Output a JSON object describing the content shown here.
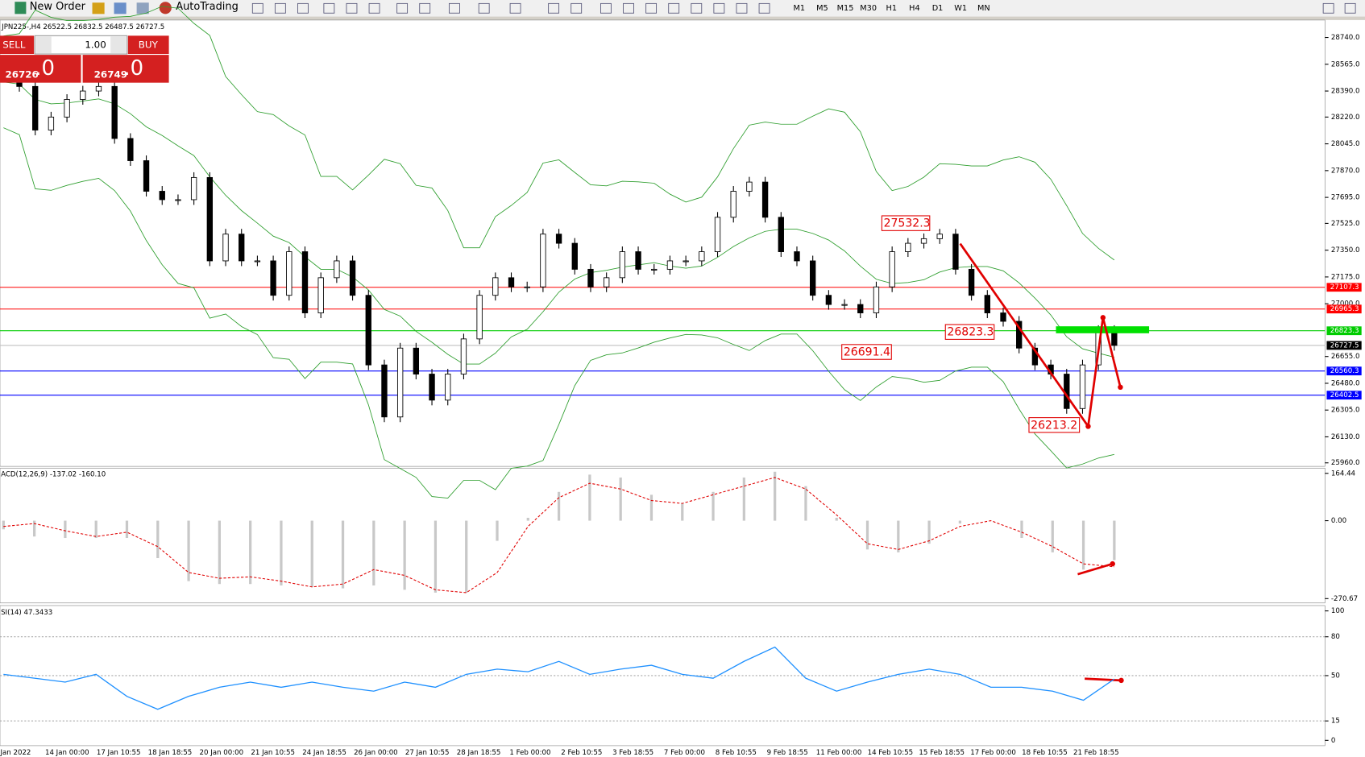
{
  "toolbar": {
    "new_order": "New Order",
    "auto_trading": "AutoTrading",
    "timeframes": [
      "M1",
      "M5",
      "M15",
      "M30",
      "H1",
      "H4",
      "D1",
      "W1",
      "MN"
    ]
  },
  "trade_panel": {
    "sell": "SELL",
    "buy": "BUY",
    "lot": "1.00",
    "bid": "26726",
    "bid_big": ".0",
    "ask": "26749",
    "ask_big": ".0"
  },
  "main": {
    "symbol": "JPN225-,H4  26522.5 26832.5 26487.5 26727.5",
    "ylim": [
      25937,
      28854
    ],
    "yticks": [
      {
        "value": 28740,
        "label": "28740.0"
      },
      {
        "value": 28565,
        "label": "28565.0"
      },
      {
        "value": 28390,
        "label": "28390.0"
      },
      {
        "value": 28220,
        "label": "28220.0"
      },
      {
        "value": 28045,
        "label": "28045.0"
      },
      {
        "value": 27870,
        "label": "27870.0"
      },
      {
        "value": 27695,
        "label": "27695.0"
      },
      {
        "value": 27525,
        "label": "27525.0"
      },
      {
        "value": 27350,
        "label": "27350.0"
      },
      {
        "value": 27175,
        "label": "27175.0"
      },
      {
        "value": 27000,
        "label": "27000.0"
      },
      {
        "value": 26655,
        "label": "26655.0"
      },
      {
        "value": 26480,
        "label": "26480.0"
      },
      {
        "value": 26305,
        "label": "26305.0"
      },
      {
        "value": 26130,
        "label": "26130.0"
      },
      {
        "value": 25960,
        "label": "25960.0"
      }
    ],
    "levels": [
      {
        "value": 27107.3,
        "color": "#ff0000"
      },
      {
        "value": 26965.3,
        "color": "#ff0000"
      },
      {
        "value": 26823.3,
        "color": "#00cc00"
      },
      {
        "value": 26727.5,
        "color": "#c0c0c0"
      },
      {
        "value": 26560.3,
        "color": "#0000ff"
      },
      {
        "value": 26402.5,
        "color": "#0000ff"
      }
    ],
    "annotations": [
      27532.3,
      26691.4,
      26823.3,
      26213.2
    ],
    "closes": [
      28450,
      28420,
      28135,
      28220,
      28335,
      28390,
      28420,
      28080,
      27935,
      27735,
      27680,
      27680,
      27825,
      27280,
      27455,
      27280,
      27280,
      27055,
      27340,
      26940,
      27170,
      27280,
      27055,
      26600,
      26260,
      26710,
      26540,
      26370,
      26540,
      26770,
      27055,
      27170,
      27110,
      27110,
      27455,
      27395,
      27225,
      27110,
      27170,
      27340,
      27225,
      27225,
      27280,
      27280,
      27340,
      27565,
      27735,
      27795,
      27565,
      27340,
      27280,
      27055,
      26995,
      26995,
      26940,
      27110,
      27340,
      27395,
      27425,
      27455,
      27225,
      27055,
      26940,
      26885,
      26710,
      26600,
      26540,
      26315,
      26600,
      26825,
      26727.5
    ]
  },
  "macd": {
    "label": "ACD(12,26,9) -137.02 -160.10",
    "ylim": [
      -285.8,
      182.6
    ],
    "yticks": [
      164.44,
      {
        "value": 0,
        "label": "0.00"
      },
      -270.67
    ],
    "histogram": [
      -30,
      -55,
      -60,
      -60,
      -60,
      -130,
      -210,
      -220,
      -220,
      -225,
      -230,
      -235,
      -225,
      -240,
      -250,
      -250,
      -70,
      10,
      100,
      160,
      150,
      90,
      60,
      100,
      150,
      170,
      120,
      10,
      -100,
      -110,
      -80,
      -10,
      0,
      -60,
      -110,
      -170,
      -137.02
    ],
    "signal": [
      -20,
      -10,
      -35,
      -55,
      -40,
      -90,
      -180,
      -200,
      -195,
      -210,
      -230,
      -220,
      -170,
      -190,
      -240,
      -250,
      -180,
      -20,
      80,
      130,
      110,
      70,
      60,
      90,
      120,
      150,
      110,
      20,
      -80,
      -100,
      -70,
      -20,
      0,
      -40,
      -90,
      -150,
      -160.1
    ]
  },
  "rsi": {
    "label": "SI(14) 47.3433",
    "ylim": [
      -4.1,
      104.1
    ],
    "yticks": [
      100,
      80,
      50,
      15,
      0
    ],
    "levels": [
      80,
      50,
      15
    ],
    "values": [
      51,
      48,
      45,
      51,
      34,
      24,
      34,
      41,
      45,
      41,
      45,
      41,
      38,
      45,
      41,
      51,
      55,
      53,
      61,
      51,
      55,
      58,
      51,
      48,
      61,
      72,
      48,
      38,
      45,
      51,
      55,
      51,
      41,
      41,
      38,
      31,
      47.3433
    ]
  },
  "dates": [
    "Jan 2022",
    "14 Jan 00:00",
    "17 Jan 10:55",
    "18 Jan 18:55",
    "20 Jan 00:00",
    "21 Jan 10:55",
    "24 Jan 18:55",
    "26 Jan 00:00",
    "27 Jan 10:55",
    "28 Jan 18:55",
    "1 Feb 00:00",
    "2 Feb 10:55",
    "3 Feb 18:55",
    "7 Feb 00:00",
    "8 Feb 10:55",
    "9 Feb 18:55",
    "11 Feb 00:00",
    "14 Feb 10:55",
    "15 Feb 18:55",
    "17 Feb 00:00",
    "18 Feb 10:55",
    "21 Feb 18:55"
  ]
}
